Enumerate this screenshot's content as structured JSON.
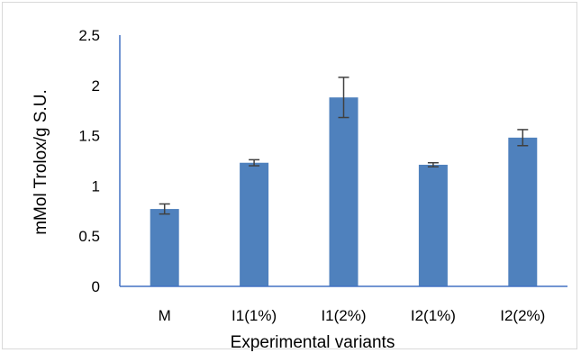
{
  "chart_data": {
    "type": "bar",
    "title": "",
    "xlabel": "Experimental variants",
    "ylabel": "mMol Trolox/g S.U.",
    "categories": [
      "M",
      "I1(1%)",
      "I1(2%)",
      "I2(1%)",
      "I2(2%)"
    ],
    "values": [
      0.77,
      1.23,
      1.88,
      1.21,
      1.48
    ],
    "error_low": [
      0.05,
      0.03,
      0.2,
      0.02,
      0.08
    ],
    "error_high": [
      0.05,
      0.03,
      0.2,
      0.02,
      0.08
    ],
    "ylim": [
      0,
      2.5
    ],
    "yticks": [
      "0",
      "0.5",
      "1",
      "1.5",
      "2",
      "2.5"
    ],
    "grid": false,
    "legend": "none",
    "colors": {
      "bar": "#4f81bd",
      "error_bar": "#404040",
      "axis": "#4472c4"
    }
  }
}
